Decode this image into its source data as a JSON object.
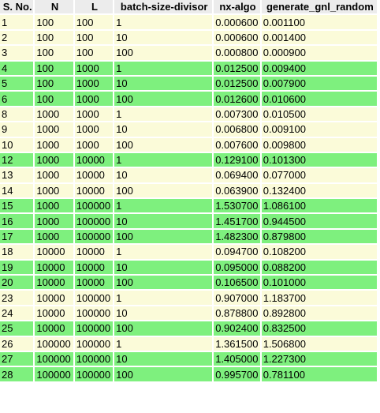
{
  "table": {
    "headers": [
      "S. No.",
      "N",
      "L",
      "batch-size-divisor",
      "nx-algo",
      "generate_gnl_random"
    ],
    "colors": {
      "header": "#ececec",
      "yellow": "#fbfbd9",
      "green": "#7ef07e"
    },
    "rows": [
      {
        "cells": [
          "1",
          "100",
          "100",
          "1",
          "0.000600",
          "0.001100"
        ],
        "color": "yellow"
      },
      {
        "cells": [
          "2",
          "100",
          "100",
          "10",
          "0.000600",
          "0.001400"
        ],
        "color": "yellow"
      },
      {
        "cells": [
          "3",
          "100",
          "100",
          "100",
          "0.000800",
          "0.000900"
        ],
        "color": "yellow"
      },
      {
        "cells": [
          "4",
          "100",
          "1000",
          "1",
          "0.012500",
          "0.009400"
        ],
        "color": "green"
      },
      {
        "cells": [
          "5",
          "100",
          "1000",
          "10",
          "0.012500",
          "0.007900"
        ],
        "color": "green"
      },
      {
        "cells": [
          "6",
          "100",
          "1000",
          "100",
          "0.012600",
          "0.010600"
        ],
        "color": "green"
      },
      {
        "cells": [
          "8",
          "1000",
          "1000",
          "1",
          "0.007300",
          "0.010500"
        ],
        "color": "yellow"
      },
      {
        "cells": [
          "9",
          "1000",
          "1000",
          "10",
          "0.006800",
          "0.009100"
        ],
        "color": "yellow"
      },
      {
        "cells": [
          "10",
          "1000",
          "1000",
          "100",
          "0.007600",
          "0.009800"
        ],
        "color": "yellow"
      },
      {
        "cells": [
          "12",
          "1000",
          "10000",
          "1",
          "0.129100",
          "0.101300"
        ],
        "color": "green"
      },
      {
        "cells": [
          "13",
          "1000",
          "10000",
          "10",
          "0.069400",
          "0.077000"
        ],
        "color": "yellow"
      },
      {
        "cells": [
          "14",
          "1000",
          "10000",
          "100",
          "0.063900",
          "0.132400"
        ],
        "color": "yellow"
      },
      {
        "cells": [
          "15",
          "1000",
          "100000",
          "1",
          "1.530700",
          "1.086100"
        ],
        "color": "green"
      },
      {
        "cells": [
          "16",
          "1000",
          "100000",
          "10",
          "1.451700",
          "0.944500"
        ],
        "color": "green"
      },
      {
        "cells": [
          "17",
          "1000",
          "100000",
          "100",
          "1.482300",
          "0.879800"
        ],
        "color": "green"
      },
      {
        "cells": [
          "18",
          "10000",
          "10000",
          "1",
          "0.094700",
          "0.108200"
        ],
        "color": "yellow"
      },
      {
        "cells": [
          "19",
          "10000",
          "10000",
          "10",
          "0.095000",
          "0.088200"
        ],
        "color": "green"
      },
      {
        "cells": [
          "20",
          "10000",
          "10000",
          "100",
          "0.106500",
          "0.101000"
        ],
        "color": "green"
      },
      {
        "cells": [
          "23",
          "10000",
          "100000",
          "1",
          "0.907000",
          "1.183700"
        ],
        "color": "yellow"
      },
      {
        "cells": [
          "24",
          "10000",
          "100000",
          "10",
          "0.878800",
          "0.892800"
        ],
        "color": "yellow"
      },
      {
        "cells": [
          "25",
          "10000",
          "100000",
          "100",
          "0.902400",
          "0.832500"
        ],
        "color": "green"
      },
      {
        "cells": [
          "26",
          "100000",
          "100000",
          "1",
          "1.361500",
          "1.506800"
        ],
        "color": "yellow"
      },
      {
        "cells": [
          "27",
          "100000",
          "100000",
          "10",
          "1.405000",
          "1.227300"
        ],
        "color": "green"
      },
      {
        "cells": [
          "28",
          "100000",
          "100000",
          "100",
          "0.995700",
          "0.781100"
        ],
        "color": "green"
      }
    ]
  }
}
